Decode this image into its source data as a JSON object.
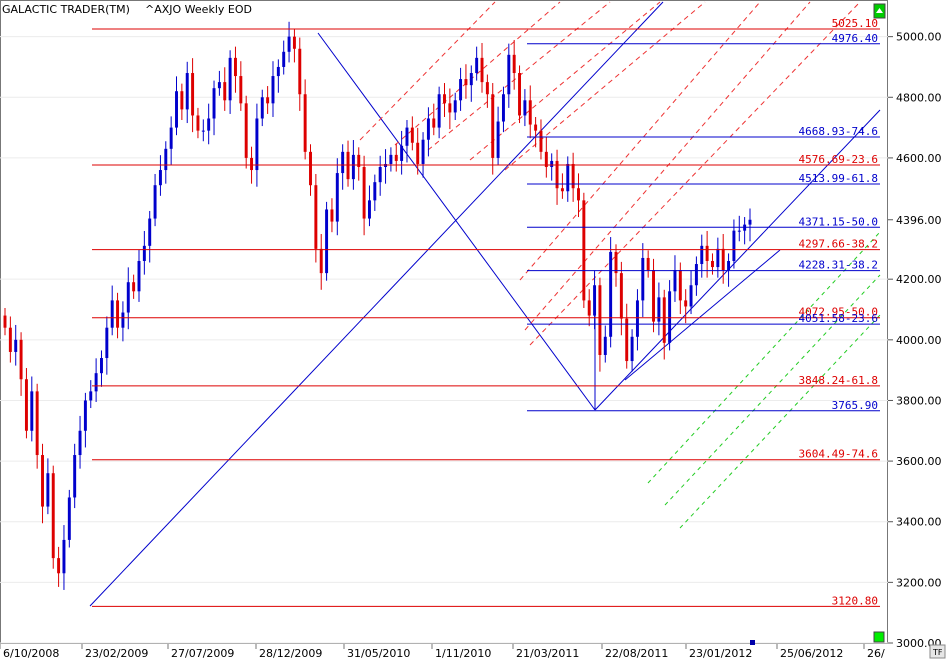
{
  "header": {
    "app_name": "GALACTIC TRADER(TM)",
    "symbol_info": "^AXJO Weekly EOD"
  },
  "chart_data": {
    "type": "candlestick",
    "ylim": [
      3000,
      5100
    ],
    "y_ticks": [
      {
        "value": 5000,
        "label": "5000.00"
      },
      {
        "value": 4800,
        "label": "4800.00"
      },
      {
        "value": 4600,
        "label": "4600.00"
      },
      {
        "value": 4396,
        "label": "4396.00"
      },
      {
        "value": 4200,
        "label": "4200.00"
      },
      {
        "value": 4000,
        "label": "4000.00"
      },
      {
        "value": 3800,
        "label": "3800.00"
      },
      {
        "value": 3600,
        "label": "3600.00"
      },
      {
        "value": 3400,
        "label": "3400.00"
      },
      {
        "value": 3200,
        "label": "3200.00"
      },
      {
        "value": 3000,
        "label": "3000.00"
      }
    ],
    "x_ticks": [
      "6/10/2008",
      "23/02/2009",
      "27/07/2009",
      "28/12/2009",
      "31/05/2010",
      "1/11/2010",
      "21/03/2011",
      "22/08/2011",
      "23/01/2012",
      "25/06/2012",
      "26/"
    ],
    "up_color": "#0000cc",
    "down_color": "#dd0000",
    "closes": [
      4040,
      3960,
      4000,
      3870,
      3700,
      3830,
      3620,
      3450,
      3560,
      3280,
      3230,
      3340,
      3480,
      3620,
      3700,
      3800,
      3830,
      3890,
      3940,
      4040,
      4130,
      4040,
      4090,
      4190,
      4160,
      4260,
      4310,
      4400,
      4510,
      4560,
      4630,
      4700,
      4820,
      4760,
      4880,
      4740,
      4690,
      4690,
      4730,
      4830,
      4850,
      4790,
      4930,
      4870,
      4780,
      4600,
      4560,
      4730,
      4800,
      4780,
      4870,
      4900,
      4950,
      5000,
      4960,
      4810,
      4620,
      4510,
      4300,
      4220,
      4430,
      4390,
      4550,
      4620,
      4530,
      4610,
      4570,
      4400,
      4460,
      4520,
      4570,
      4580,
      4610,
      4590,
      4640,
      4700,
      4650,
      4580,
      4660,
      4730,
      4700,
      4810,
      4780,
      4750,
      4790,
      4860,
      4840,
      4880,
      4930,
      4850,
      4810,
      4600,
      4720,
      4810,
      4940,
      4880,
      4740,
      4790,
      4710,
      4690,
      4620,
      4570,
      4590,
      4500,
      4490,
      4580,
      4500,
      4460,
      4130,
      4080,
      4180,
      3950,
      4010,
      4290,
      4220,
      4070,
      3930,
      4010,
      4130,
      4270,
      4230,
      4060,
      4140,
      3990,
      4160,
      4230,
      4130,
      4110,
      4180,
      4250,
      4310,
      4260,
      4240,
      4300,
      4230,
      4260,
      4360,
      4360,
      4380,
      4396
    ],
    "levels": [
      {
        "value": 5025.1,
        "label": "5025.10",
        "color": "#dd0000",
        "x_start_index": 0
      },
      {
        "value": 4976.4,
        "label": "4976.40",
        "color": "#0000cc",
        "x_start_index": 109
      },
      {
        "value": 4668.93,
        "label": "4668.93-74.6",
        "color": "#0000cc",
        "x_start_index": 109
      },
      {
        "value": 4576.69,
        "label": "4576.69-23.6",
        "color": "#dd0000",
        "x_start_index": 0
      },
      {
        "value": 4513.99,
        "label": "4513.99-61.8",
        "color": "#0000cc",
        "x_start_index": 109
      },
      {
        "value": 4371.15,
        "label": "4371.15-50.0",
        "color": "#0000cc",
        "x_start_index": 109
      },
      {
        "value": 4297.66,
        "label": "4297.66-38.2",
        "color": "#dd0000",
        "x_start_index": 0
      },
      {
        "value": 4228.31,
        "label": "4228.31-38.2",
        "color": "#0000cc",
        "x_start_index": 109
      },
      {
        "value": 4072.95,
        "label": "4072.95-50.0",
        "color": "#dd0000",
        "x_start_index": 0
      },
      {
        "value": 4051.58,
        "label": "4051.58-23.6",
        "color": "#0000cc",
        "x_start_index": 109
      },
      {
        "value": 3848.24,
        "label": "3848.24-61.8",
        "color": "#dd0000",
        "x_start_index": 0
      },
      {
        "value": 3765.9,
        "label": "3765.90",
        "color": "#0000cc",
        "x_start_index": 109
      },
      {
        "value": 3604.49,
        "label": "3604.49-74.6",
        "color": "#dd0000",
        "x_start_index": 0
      },
      {
        "value": 3120.8,
        "label": "3120.80",
        "color": "#dd0000",
        "x_start_index": 15
      }
    ]
  }
}
